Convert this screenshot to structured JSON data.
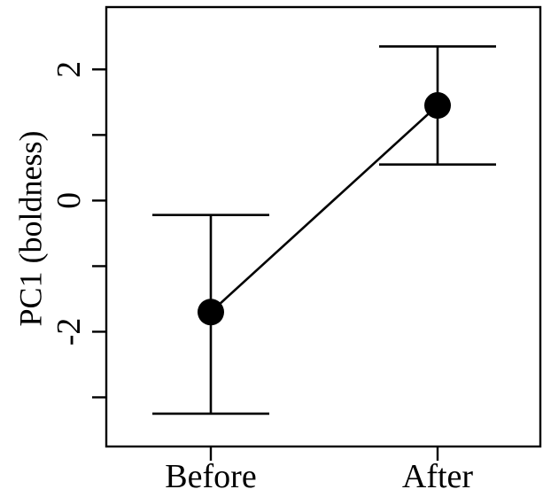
{
  "chart_data": {
    "type": "scatter",
    "title": "",
    "xlabel": "",
    "ylabel": "PC1 (boldness)",
    "categories": [
      "Before",
      "After"
    ],
    "series": [
      {
        "values": [
          -1.7,
          1.45
        ],
        "lower": [
          -3.25,
          0.55
        ],
        "upper": [
          -0.22,
          2.35
        ]
      }
    ],
    "yticks": [
      -2,
      0,
      2
    ],
    "yticks_unlabeled": [
      -3,
      -1,
      1
    ],
    "ylim": [
      -3.75,
      2.95
    ],
    "grid": false,
    "connected": true
  }
}
